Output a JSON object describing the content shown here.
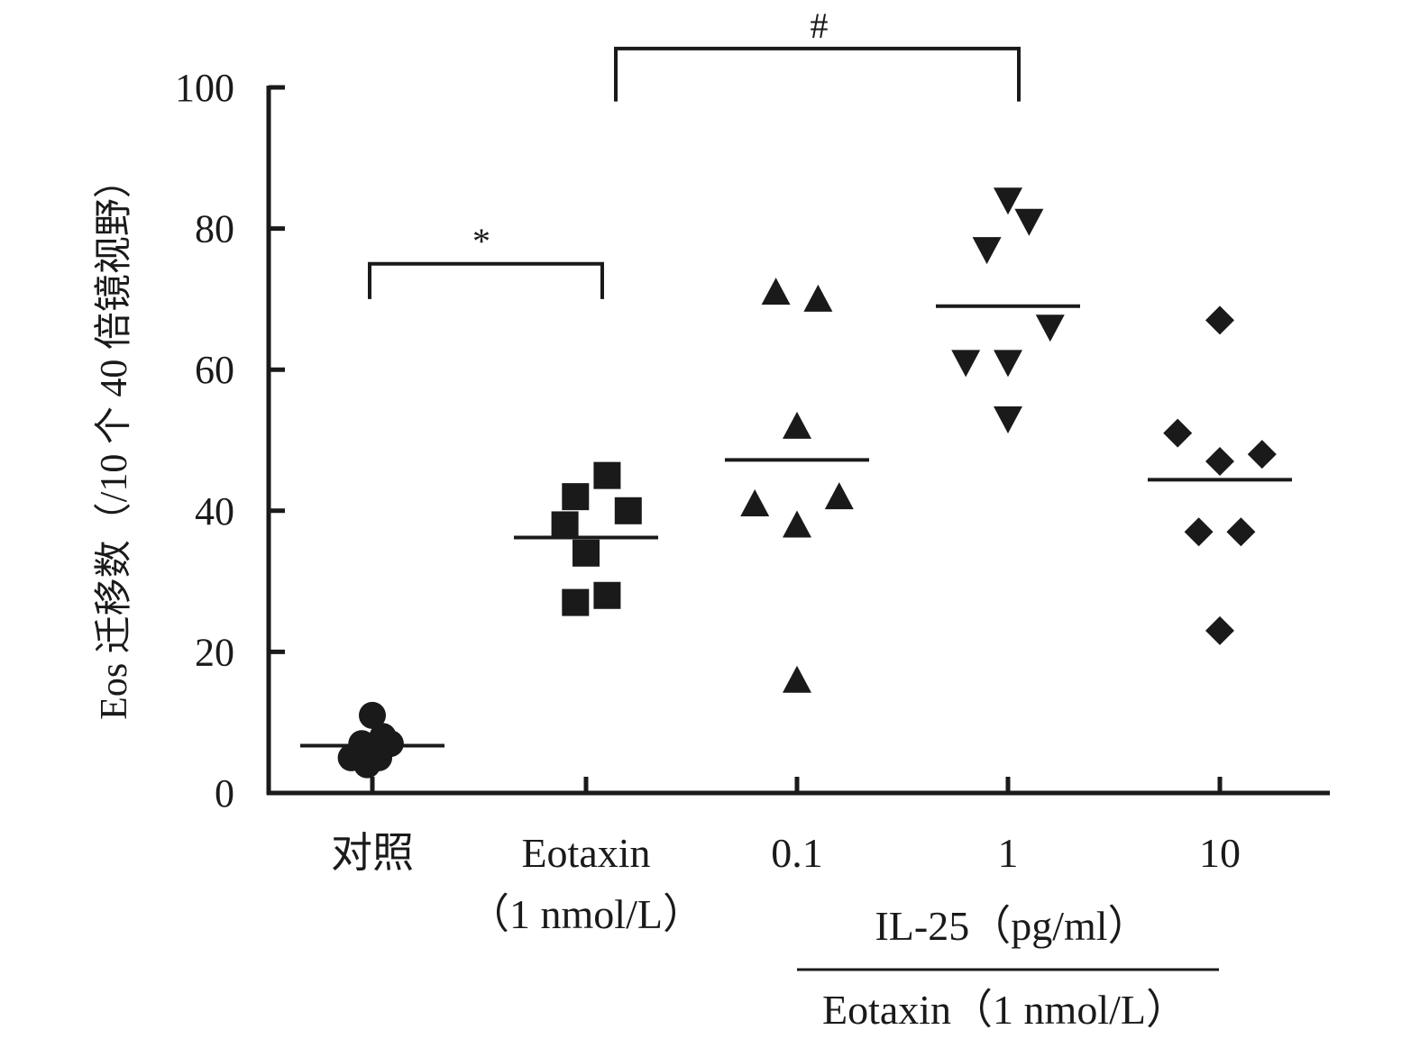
{
  "chart_data": {
    "type": "scatter",
    "ylabel": "Eos 迁移数（/10 个 40 倍镜视野）",
    "ylim": [
      0,
      100
    ],
    "yticks": [
      0,
      20,
      40,
      60,
      80,
      100
    ],
    "categories": [
      {
        "label": "对照",
        "sublabel": ""
      },
      {
        "label": "Eotaxin",
        "sublabel": "（1 nmol/L）"
      },
      {
        "label": "0.1",
        "sublabel": ""
      },
      {
        "label": "1",
        "sublabel": ""
      },
      {
        "label": "10",
        "sublabel": ""
      }
    ],
    "group_label_top": "IL-25（pg/ml）",
    "group_label_bottom": "Eotaxin（1 nmol/L）",
    "series": [
      {
        "marker": "circle",
        "mean": 6.7,
        "points": [
          {
            "dx": 0,
            "y": 11
          },
          {
            "dx": -0.2,
            "y": 5
          },
          {
            "dx": -0.1,
            "y": 7
          },
          {
            "dx": -0.05,
            "y": 4
          },
          {
            "dx": 0.06,
            "y": 5
          },
          {
            "dx": 0.1,
            "y": 8
          },
          {
            "dx": 0.17,
            "y": 7
          }
        ]
      },
      {
        "marker": "square",
        "mean": 36.2,
        "points": [
          {
            "dx": 0.2,
            "y": 45
          },
          {
            "dx": -0.1,
            "y": 42
          },
          {
            "dx": 0.4,
            "y": 40
          },
          {
            "dx": -0.2,
            "y": 38
          },
          {
            "dx": 0,
            "y": 34
          },
          {
            "dx": -0.1,
            "y": 27
          },
          {
            "dx": 0.2,
            "y": 28
          }
        ]
      },
      {
        "marker": "triangle-up",
        "mean": 47.2,
        "points": [
          {
            "dx": -0.2,
            "y": 71
          },
          {
            "dx": 0.2,
            "y": 70
          },
          {
            "dx": 0,
            "y": 52
          },
          {
            "dx": 0.4,
            "y": 42
          },
          {
            "dx": -0.4,
            "y": 41
          },
          {
            "dx": 0,
            "y": 38
          },
          {
            "dx": 0,
            "y": 16
          }
        ]
      },
      {
        "marker": "triangle-down",
        "mean": 69,
        "points": [
          {
            "dx": 0,
            "y": 84
          },
          {
            "dx": 0.2,
            "y": 81
          },
          {
            "dx": -0.2,
            "y": 77
          },
          {
            "dx": 0.4,
            "y": 66
          },
          {
            "dx": -0.4,
            "y": 61
          },
          {
            "dx": 0,
            "y": 61
          },
          {
            "dx": 0,
            "y": 53
          }
        ]
      },
      {
        "marker": "diamond",
        "mean": 44.4,
        "points": [
          {
            "dx": 0,
            "y": 67
          },
          {
            "dx": -0.4,
            "y": 51
          },
          {
            "dx": 0.4,
            "y": 48
          },
          {
            "dx": 0,
            "y": 47
          },
          {
            "dx": -0.2,
            "y": 37
          },
          {
            "dx": 0.2,
            "y": 37
          },
          {
            "dx": 0,
            "y": 23
          }
        ]
      }
    ],
    "annotations": [
      {
        "label": "*",
        "from": 0,
        "to": 1
      },
      {
        "label": "#",
        "from": 1,
        "to": 3
      }
    ]
  }
}
